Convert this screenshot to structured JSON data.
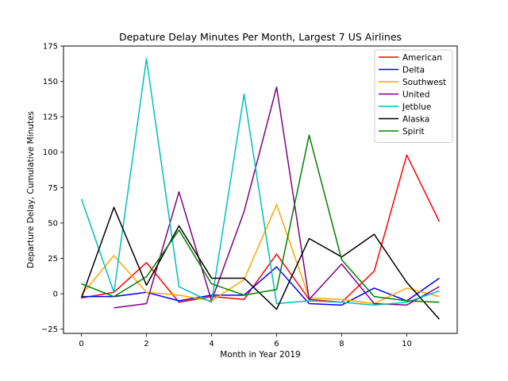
{
  "chart_data": {
    "type": "line",
    "title": "Depature Delay Minutes Per Month, Largest 7 US Airlines",
    "xlabel": "Month in Year 2019",
    "ylabel": "Departure Delay, Cumulative Minutes",
    "xlim": [
      -0.55,
      11.55
    ],
    "ylim": [
      -28,
      175
    ],
    "xticks": [
      0,
      2,
      4,
      6,
      8,
      10
    ],
    "yticks": [
      -25,
      0,
      25,
      50,
      75,
      100,
      125,
      150,
      175
    ],
    "grid": false,
    "legend_position": "top-right",
    "series": [
      {
        "name": "American",
        "color": "#ff0000",
        "x": [
          0,
          1,
          2,
          3,
          4,
          5,
          6,
          7,
          8,
          9,
          10,
          11
        ],
        "values": [
          -3,
          1,
          22,
          -6,
          -2,
          -4,
          28,
          -4,
          -6,
          16,
          98,
          51
        ]
      },
      {
        "name": "Delta",
        "color": "#0000ff",
        "x": [
          0,
          1,
          2,
          3,
          4,
          5,
          6,
          7,
          8,
          9,
          10,
          11
        ],
        "values": [
          -2,
          -2,
          1,
          -5,
          -1,
          -1,
          19,
          -7,
          -8,
          4,
          -5,
          11
        ]
      },
      {
        "name": "Southwest",
        "color": "#ffa500",
        "x": [
          0,
          1,
          2,
          3,
          4,
          5,
          6,
          7,
          8,
          9,
          10,
          11
        ],
        "values": [
          -1,
          27,
          1,
          -1,
          -5,
          10,
          63,
          -3,
          -4,
          -7,
          4,
          -2
        ]
      },
      {
        "name": "United",
        "color": "#800080",
        "x": [
          1,
          2,
          3,
          4,
          5,
          6,
          7,
          8,
          9,
          10,
          11
        ],
        "values": [
          -10,
          -7,
          72,
          -5,
          58,
          146,
          -4,
          21,
          -7,
          -8,
          5
        ]
      },
      {
        "name": "Jetblue",
        "color": "#00bfbf",
        "x": [
          0,
          1,
          2,
          3,
          4,
          5,
          6,
          7,
          8,
          9,
          10,
          11
        ],
        "values": [
          67,
          1,
          166,
          5,
          -6,
          141,
          -7,
          -5,
          -6,
          -8,
          -6,
          2
        ]
      },
      {
        "name": "Alaska",
        "color": "#000000",
        "x": [
          0,
          1,
          2,
          3,
          4,
          5,
          6,
          7,
          8,
          9,
          10,
          11
        ],
        "values": [
          -3,
          61,
          6,
          48,
          11,
          11,
          -11,
          39,
          26,
          42,
          8,
          -18
        ]
      },
      {
        "name": "Spirit",
        "color": "#008000",
        "x": [
          0,
          1,
          2,
          3,
          4,
          5,
          6,
          7,
          8,
          9,
          10,
          11
        ],
        "values": [
          7,
          -2,
          12,
          45,
          7,
          -1,
          3,
          112,
          24,
          -2,
          -5,
          -6
        ]
      }
    ]
  }
}
